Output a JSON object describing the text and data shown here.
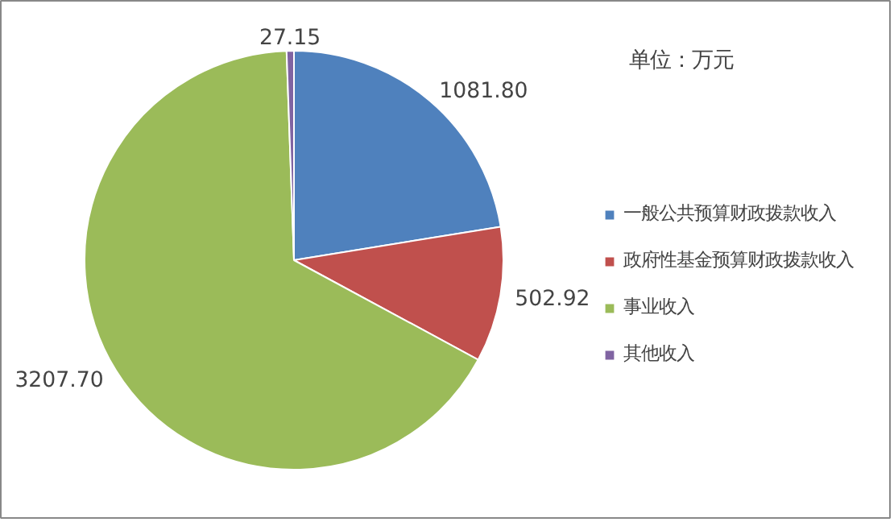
{
  "chart_data": {
    "type": "pie",
    "categories": [
      "一般公共预算财政拨款收入",
      "政府性基金预算财政拨款收入",
      "事业收入",
      "其他收入"
    ],
    "values": [
      1081.8,
      502.92,
      3207.7,
      27.15
    ],
    "colors": [
      "#4f81bd",
      "#c0504d",
      "#9bbb59",
      "#8064a2"
    ],
    "value_labels": [
      "1081.80",
      "502.92",
      "3207.70",
      "27.15"
    ],
    "annotations": [
      "单位：万元"
    ],
    "legend": "right"
  }
}
